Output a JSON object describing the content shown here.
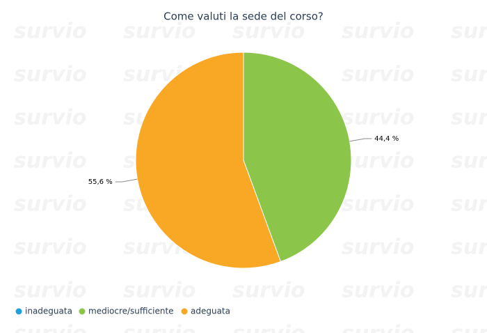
{
  "chart_data": {
    "type": "pie",
    "title": "Come valuti la sede del corso?",
    "watermark": "survio",
    "categories": [
      "inadeguata",
      "mediocre/sufficiente",
      "adeguata"
    ],
    "values": [
      0,
      44.4,
      55.6
    ],
    "value_labels": [
      null,
      "44,4 %",
      "55,6 %"
    ],
    "colors": [
      "#1ea0dc",
      "#8bc64a",
      "#f9a825"
    ]
  }
}
